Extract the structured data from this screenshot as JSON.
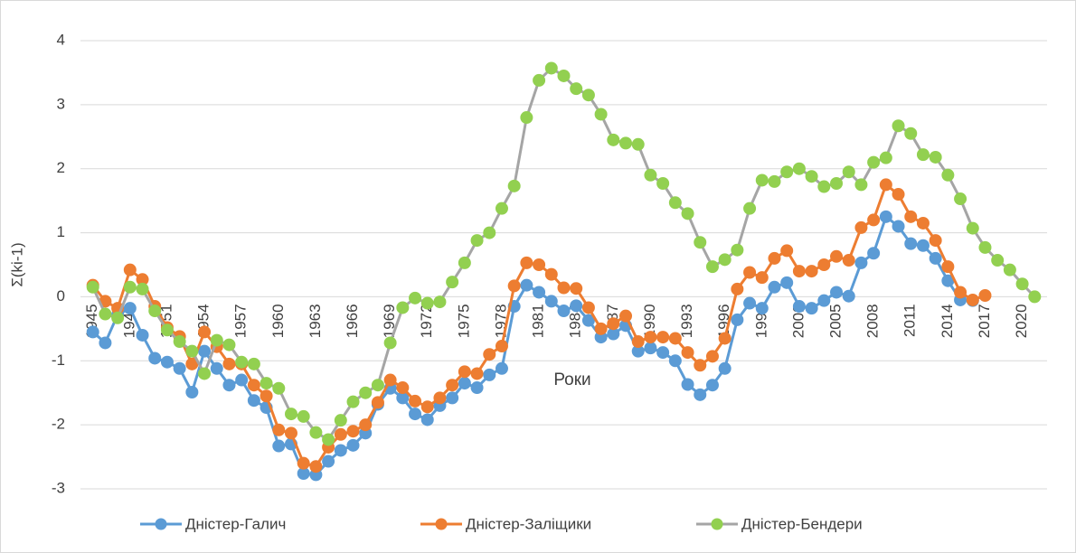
{
  "chart_data": {
    "type": "line",
    "y_label": "Σ(ki-1)",
    "x_label": "Роки",
    "x": [
      1945,
      1946,
      1947,
      1948,
      1949,
      1950,
      1951,
      1952,
      1953,
      1954,
      1955,
      1956,
      1957,
      1958,
      1959,
      1960,
      1961,
      1962,
      1963,
      1964,
      1965,
      1966,
      1967,
      1968,
      1969,
      1970,
      1971,
      1972,
      1973,
      1974,
      1975,
      1976,
      1977,
      1978,
      1979,
      1980,
      1981,
      1982,
      1983,
      1984,
      1985,
      1986,
      1987,
      1988,
      1989,
      1990,
      1991,
      1992,
      1993,
      1994,
      1995,
      1996,
      1997,
      1998,
      1999,
      2000,
      2001,
      2002,
      2003,
      2004,
      2005,
      2006,
      2007,
      2008,
      2009,
      2010,
      2011,
      2012,
      2013,
      2014,
      2015,
      2016,
      2017,
      2018,
      2019,
      2020,
      2021
    ],
    "xlim": [
      1944,
      2022
    ],
    "xticks": [
      1945,
      1948,
      1951,
      1954,
      1957,
      1960,
      1963,
      1966,
      1969,
      1972,
      1975,
      1978,
      1981,
      1984,
      1987,
      1990,
      1993,
      1996,
      1999,
      2002,
      2005,
      2008,
      2011,
      2014,
      2017,
      2020
    ],
    "ylim": [
      -3,
      4
    ],
    "yticks": [
      -3,
      -2,
      -1,
      0,
      1,
      2,
      3,
      4
    ],
    "grid": true,
    "legend": "bottom",
    "series": [
      {
        "name": "Дністер-Галич",
        "color": "#5b9bd5",
        "marker_color": "#5b9bd5",
        "values": [
          -0.55,
          -0.72,
          -0.28,
          -0.18,
          -0.6,
          -0.96,
          -1.02,
          -1.12,
          -1.49,
          -0.85,
          -1.12,
          -1.38,
          -1.3,
          -1.62,
          -1.73,
          -2.33,
          -2.3,
          -2.76,
          -2.78,
          -2.57,
          -2.4,
          -2.32,
          -2.13,
          -1.68,
          -1.43,
          -1.58,
          -1.83,
          -1.92,
          -1.7,
          -1.58,
          -1.35,
          -1.42,
          -1.22,
          -1.12,
          -0.15,
          0.18,
          0.07,
          -0.07,
          -0.22,
          -0.14,
          -0.37,
          -0.63,
          -0.58,
          -0.45,
          -0.85,
          -0.8,
          -0.87,
          -1.0,
          -1.37,
          -1.53,
          -1.38,
          -1.12,
          -0.36,
          -0.1,
          -0.18,
          0.15,
          0.22,
          -0.15,
          -0.18,
          -0.06,
          0.07,
          0.01,
          0.53,
          0.68,
          1.25,
          1.1,
          0.83,
          0.8,
          0.6,
          0.25,
          -0.05,
          -0.06,
          null,
          null,
          null,
          null,
          null
        ]
      },
      {
        "name": "Дністер-Заліщики",
        "color": "#ed7d31",
        "marker_color": "#ed7d31",
        "values": [
          0.18,
          -0.07,
          -0.18,
          0.42,
          0.27,
          -0.15,
          -0.48,
          -0.62,
          -1.05,
          -0.55,
          -0.78,
          -1.05,
          -1.05,
          -1.38,
          -1.55,
          -2.08,
          -2.13,
          -2.6,
          -2.65,
          -2.35,
          -2.15,
          -2.1,
          -2.0,
          -1.65,
          -1.3,
          -1.42,
          -1.63,
          -1.72,
          -1.58,
          -1.38,
          -1.17,
          -1.2,
          -0.9,
          -0.77,
          0.17,
          0.53,
          0.5,
          0.35,
          0.14,
          0.13,
          -0.17,
          -0.5,
          -0.42,
          -0.3,
          -0.7,
          -0.63,
          -0.63,
          -0.65,
          -0.87,
          -1.07,
          -0.93,
          -0.65,
          0.12,
          0.38,
          0.3,
          0.6,
          0.72,
          0.4,
          0.4,
          0.5,
          0.63,
          0.57,
          1.08,
          1.2,
          1.75,
          1.6,
          1.25,
          1.15,
          0.88,
          0.47,
          0.07,
          -0.05,
          0.02,
          null,
          null,
          null,
          null
        ]
      },
      {
        "name": "Дністер-Бендери",
        "color": "#a5a5a5",
        "marker_color": "#92d050",
        "values": [
          0.15,
          -0.27,
          -0.33,
          0.15,
          0.12,
          -0.22,
          -0.52,
          -0.7,
          -0.85,
          -1.2,
          -0.68,
          -0.75,
          -1.02,
          -1.05,
          -1.35,
          -1.43,
          -1.83,
          -1.87,
          -2.12,
          -2.23,
          -1.93,
          -1.64,
          -1.5,
          -1.38,
          -0.72,
          -0.17,
          -0.02,
          -0.1,
          -0.08,
          0.23,
          0.53,
          0.88,
          1.0,
          1.38,
          1.73,
          2.8,
          3.38,
          3.57,
          3.45,
          3.25,
          3.15,
          2.85,
          2.45,
          2.4,
          2.38,
          1.9,
          1.77,
          1.47,
          1.3,
          0.85,
          0.47,
          0.58,
          0.73,
          1.38,
          1.82,
          1.8,
          1.95,
          2.0,
          1.88,
          1.72,
          1.77,
          1.95,
          1.75,
          2.1,
          2.17,
          2.67,
          2.55,
          2.22,
          2.18,
          1.9,
          1.53,
          1.07,
          0.77,
          0.57,
          0.42,
          0.2,
          0.0
        ]
      }
    ]
  }
}
